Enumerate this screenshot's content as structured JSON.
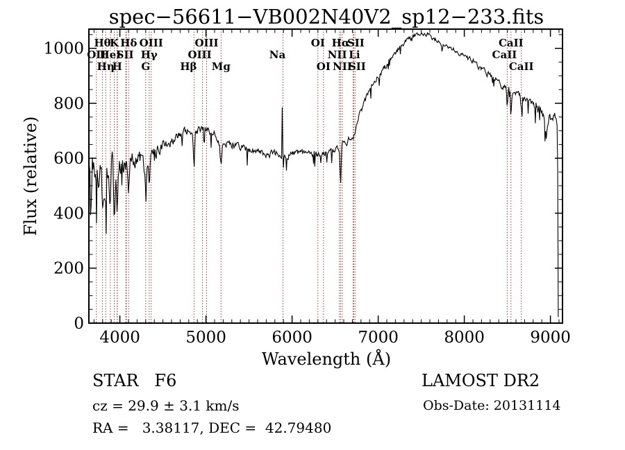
{
  "annotations": {
    "class_label": "STAR   F6",
    "survey": "LAMOST DR2",
    "cz": "cz = 29.9 ± 3.1 km/s",
    "obs_date": "Obs-Date: 20131114",
    "radec": "RA =   3.38117, DEC =  42.79480"
  },
  "chart_data": {
    "type": "line",
    "title": "spec−56611−VB002N40V2_sp12−233.fits",
    "xlabel": "Wavelength (Å)",
    "ylabel": "Flux (relative)",
    "xlim": [
      3640,
      9140
    ],
    "ylim": [
      0,
      1070
    ],
    "x_major_ticks": [
      4000,
      5000,
      6000,
      7000,
      8000,
      9000
    ],
    "y_major_ticks": [
      0,
      200,
      400,
      600,
      800,
      1000
    ],
    "x_minor_step": 100,
    "y_minor_step": 50,
    "grid": false,
    "curve_color": "#000000",
    "line_color": "#9b3a3a",
    "axis_color": "#000000",
    "background": "#ffffff",
    "spectral_lines": [
      {
        "label": "OII",
        "wl": 3727,
        "row": 2
      },
      {
        "label": "Hθ",
        "wl": 3798,
        "row": 1
      },
      {
        "label": "Hη",
        "wl": 3835,
        "row": 3
      },
      {
        "label": "HeI",
        "wl": 3889,
        "row": 2
      },
      {
        "label": "K",
        "wl": 3934,
        "row": 1
      },
      {
        "label": "H",
        "wl": 3968,
        "row": 3
      },
      {
        "label": "",
        "wl": 3970,
        "row": 3
      },
      {
        "label": "",
        "wl": 4068,
        "row": 2
      },
      {
        "label": "SII",
        "wl": 4076,
        "row": 2,
        "dx": -2
      },
      {
        "label": "Hδ",
        "wl": 4102,
        "row": 1
      },
      {
        "label": "G",
        "wl": 4300,
        "row": 3
      },
      {
        "label": "Hγ",
        "wl": 4340,
        "row": 2
      },
      {
        "label": "OIII",
        "wl": 4363,
        "row": 1
      },
      {
        "label": "Hβ",
        "wl": 4861,
        "row": 3,
        "dx": -8
      },
      {
        "label": "OIII",
        "wl": 4959,
        "row": 2,
        "dx": -4
      },
      {
        "label": "OIII",
        "wl": 5007,
        "row": 1
      },
      {
        "label": "Mg",
        "wl": 5175,
        "row": 3
      },
      {
        "label": "Na",
        "wl": 5894,
        "row": 2,
        "dx": -8
      },
      {
        "label": "OI",
        "wl": 6300,
        "row": 1
      },
      {
        "label": "OI",
        "wl": 6364,
        "row": 3
      },
      {
        "label": "NII",
        "wl": 6548,
        "row": 2,
        "dx": -3
      },
      {
        "label": "Hα",
        "wl": 6563,
        "row": 1
      },
      {
        "label": "NII",
        "wl": 6583,
        "row": 3
      },
      {
        "label": "Li",
        "wl": 6708,
        "row": 2,
        "dx": 2
      },
      {
        "label": "SII",
        "wl": 6716,
        "row": 1,
        "dx": 3
      },
      {
        "label": "SII",
        "wl": 6731,
        "row": 3,
        "dx": 3
      },
      {
        "label": "CaII",
        "wl": 8498,
        "row": 2,
        "dx": -4
      },
      {
        "label": "CaII",
        "wl": 8542,
        "row": 1
      },
      {
        "label": "CaII",
        "wl": 8662,
        "row": 3
      }
    ],
    "series_anchors": [
      [
        3645,
        600
      ],
      [
        3660,
        500
      ],
      [
        3680,
        600
      ],
      [
        3700,
        525
      ],
      [
        3730,
        560
      ],
      [
        3760,
        545
      ],
      [
        3790,
        560
      ],
      [
        3820,
        505
      ],
      [
        3850,
        555
      ],
      [
        3880,
        490
      ],
      [
        3910,
        560
      ],
      [
        3940,
        525
      ],
      [
        3970,
        550
      ],
      [
        4000,
        575
      ],
      [
        4040,
        560
      ],
      [
        4080,
        580
      ],
      [
        4120,
        590
      ],
      [
        4160,
        600
      ],
      [
        4200,
        600
      ],
      [
        4240,
        595
      ],
      [
        4280,
        575
      ],
      [
        4320,
        580
      ],
      [
        4360,
        610
      ],
      [
        4400,
        615
      ],
      [
        4450,
        635
      ],
      [
        4500,
        650
      ],
      [
        4600,
        665
      ],
      [
        4700,
        685
      ],
      [
        4750,
        695
      ],
      [
        4800,
        700
      ],
      [
        4861,
        690
      ],
      [
        4920,
        700
      ],
      [
        4980,
        705
      ],
      [
        5040,
        695
      ],
      [
        5100,
        690
      ],
      [
        5160,
        665
      ],
      [
        5220,
        660
      ],
      [
        5280,
        655
      ],
      [
        5350,
        645
      ],
      [
        5420,
        640
      ],
      [
        5500,
        632
      ],
      [
        5600,
        625
      ],
      [
        5700,
        618
      ],
      [
        5800,
        618
      ],
      [
        5890,
        615
      ],
      [
        5950,
        610
      ],
      [
        6050,
        618
      ],
      [
        6150,
        620
      ],
      [
        6250,
        612
      ],
      [
        6350,
        615
      ],
      [
        6450,
        625
      ],
      [
        6550,
        640
      ],
      [
        6650,
        665
      ],
      [
        6720,
        690
      ],
      [
        6780,
        750
      ],
      [
        6840,
        805
      ],
      [
        6900,
        845
      ],
      [
        6960,
        880
      ],
      [
        7020,
        905
      ],
      [
        7090,
        935
      ],
      [
        7160,
        965
      ],
      [
        7240,
        1000
      ],
      [
        7320,
        1025
      ],
      [
        7400,
        1042
      ],
      [
        7480,
        1052
      ],
      [
        7560,
        1050
      ],
      [
        7640,
        1038
      ],
      [
        7720,
        1025
      ],
      [
        7800,
        1012
      ],
      [
        7900,
        992
      ],
      [
        8000,
        975
      ],
      [
        8100,
        952
      ],
      [
        8200,
        928
      ],
      [
        8300,
        902
      ],
      [
        8400,
        878
      ],
      [
        8500,
        855
      ],
      [
        8600,
        835
      ],
      [
        8700,
        808
      ],
      [
        8800,
        788
      ],
      [
        8900,
        768
      ],
      [
        8960,
        742
      ],
      [
        9020,
        760
      ],
      [
        9060,
        745
      ],
      [
        9092,
        700
      ]
    ],
    "noise_profile": [
      [
        3645,
        100
      ],
      [
        3750,
        88
      ],
      [
        3850,
        85
      ],
      [
        3950,
        65
      ],
      [
        4050,
        55
      ],
      [
        4200,
        48
      ],
      [
        4350,
        45
      ],
      [
        4500,
        32
      ],
      [
        4700,
        28
      ],
      [
        4900,
        26
      ],
      [
        5100,
        26
      ],
      [
        5300,
        24
      ],
      [
        5500,
        22
      ],
      [
        5700,
        22
      ],
      [
        5900,
        20
      ],
      [
        6100,
        20
      ],
      [
        6300,
        22
      ],
      [
        6500,
        20
      ],
      [
        6700,
        22
      ],
      [
        6900,
        20
      ],
      [
        7100,
        18
      ],
      [
        7300,
        16
      ],
      [
        7500,
        15
      ],
      [
        7700,
        16
      ],
      [
        7900,
        17
      ],
      [
        8100,
        18
      ],
      [
        8300,
        20
      ],
      [
        8500,
        22
      ],
      [
        8700,
        24
      ],
      [
        8850,
        32
      ],
      [
        8950,
        36
      ],
      [
        9092,
        30
      ]
    ],
    "features": [
      {
        "wl": 3665,
        "width": 8,
        "depth": 130
      },
      {
        "wl": 3798,
        "width": 9,
        "depth": 80
      },
      {
        "wl": 3835,
        "width": 9,
        "depth": 120
      },
      {
        "wl": 3889,
        "width": 9,
        "depth": 100
      },
      {
        "wl": 3934,
        "width": 9,
        "depth": 115
      },
      {
        "wl": 3968,
        "width": 9,
        "depth": 105
      },
      {
        "wl": 4102,
        "width": 9,
        "depth": 100
      },
      {
        "wl": 4300,
        "width": 14,
        "depth": 70
      },
      {
        "wl": 4340,
        "width": 9,
        "depth": 110
      },
      {
        "wl": 4861,
        "width": 10,
        "depth": 125
      },
      {
        "wl": 5175,
        "width": 16,
        "depth": 80
      },
      {
        "wl": 5886,
        "width": 5,
        "depth": -170
      },
      {
        "wl": 5897,
        "width": 5,
        "depth": 55
      },
      {
        "wl": 6563,
        "width": 9,
        "depth": 135
      },
      {
        "wl": 8498,
        "width": 10,
        "depth": 65
      },
      {
        "wl": 8542,
        "width": 10,
        "depth": 70
      },
      {
        "wl": 8662,
        "width": 10,
        "depth": 55
      },
      {
        "wl": 8950,
        "width": 18,
        "depth": 80
      },
      {
        "wl": 9090,
        "width": 5,
        "depth": 700
      }
    ],
    "noise_seed": 13,
    "sample_step": 7
  }
}
